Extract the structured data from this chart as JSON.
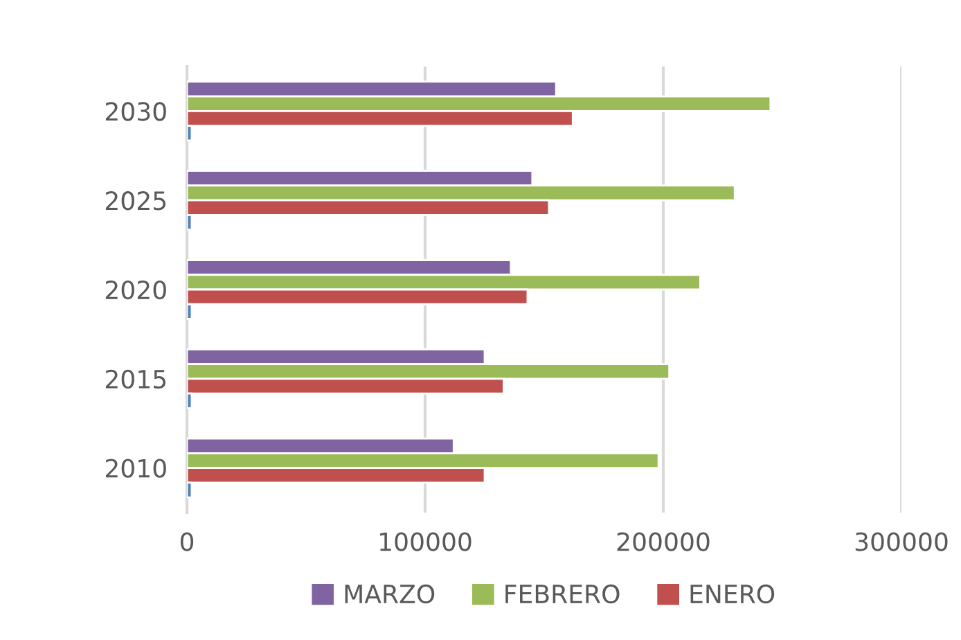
{
  "chart_data": {
    "type": "bar",
    "orientation": "horizontal",
    "categories": [
      "2030",
      "2025",
      "2020",
      "2015",
      "2010"
    ],
    "series": [
      {
        "name": "MARZO",
        "color": "#8064a2",
        "values": [
          155000,
          145000,
          136000,
          125000,
          112000
        ]
      },
      {
        "name": "FEBRERO",
        "color": "#9bbb59",
        "values": [
          245000,
          230000,
          215500,
          202500,
          198000
        ]
      },
      {
        "name": "ENERO",
        "color": "#c0504d",
        "values": [
          162000,
          152000,
          143000,
          133000,
          125000
        ]
      },
      {
        "color": "#4f81bd",
        "values": [
          2000,
          2000,
          2000,
          2000,
          2000
        ]
      }
    ],
    "xlim": [
      0,
      300000
    ],
    "xticks": [
      0,
      100000,
      200000,
      300000
    ],
    "grid": "x",
    "legend": "bottom"
  }
}
